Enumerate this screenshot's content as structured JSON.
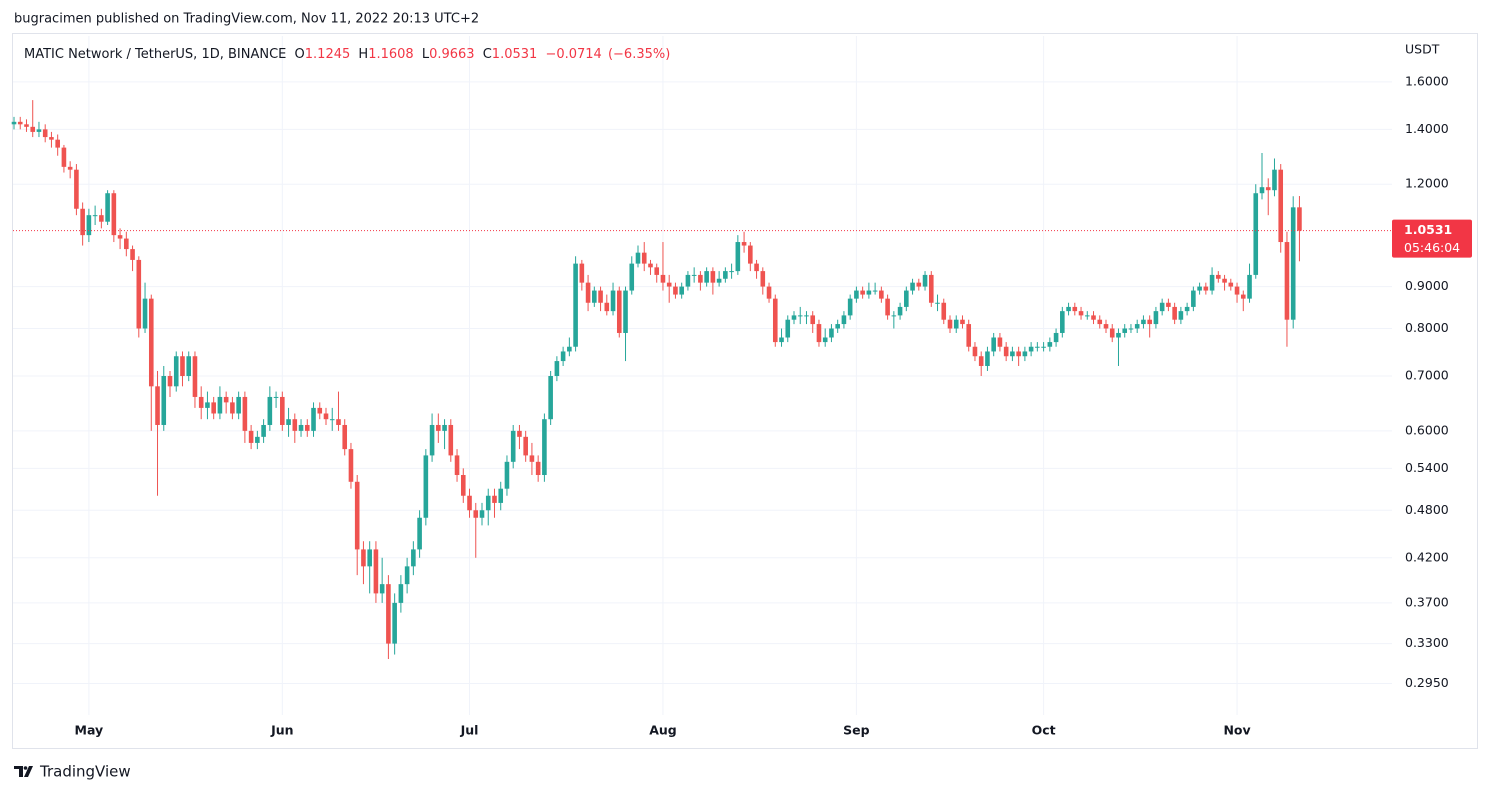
{
  "header": {
    "publisher": "bugracimen published on TradingView.com, Nov 11, 2022 20:13 UTC+2",
    "footer_logo": "TradingView"
  },
  "chart_data": {
    "type": "candlestick",
    "title": "MATIC Network / TetherUS, 1D, BINANCE",
    "ohlc_legend": {
      "open_label": "O",
      "open": 1.1245,
      "high_label": "H",
      "high": 1.1608,
      "low_label": "L",
      "low": 0.9663,
      "close_label": "C",
      "close": 1.0531,
      "change": {
        "value": -0.0714,
        "label": "−0.0714"
      },
      "change_pct": {
        "value": -6.35,
        "label": "(−6.35%)"
      }
    },
    "y_axis_label": "USDT",
    "last_price": 1.0531,
    "countdown": "05:46:04",
    "up_color": "#26a69a",
    "down_color": "#ef5350",
    "last_price_color": "#f23645",
    "log_scale": true,
    "grid": true,
    "ylim": [
      0.27,
      1.82
    ],
    "yticks": [
      {
        "value": 0.295,
        "label": "0.2950"
      },
      {
        "value": 0.33,
        "label": "0.3300"
      },
      {
        "value": 0.37,
        "label": "0.3700"
      },
      {
        "value": 0.42,
        "label": "0.4200"
      },
      {
        "value": 0.48,
        "label": "0.4800"
      },
      {
        "value": 0.54,
        "label": "0.5400"
      },
      {
        "value": 0.6,
        "label": "0.6000"
      },
      {
        "value": 0.7,
        "label": "0.7000"
      },
      {
        "value": 0.8,
        "label": "0.8000"
      },
      {
        "value": 0.9,
        "label": "0.9000"
      },
      {
        "value": 1.2,
        "label": "1.2000"
      },
      {
        "value": 1.4,
        "label": "1.4000"
      },
      {
        "value": 1.6,
        "label": "1.6000"
      }
    ],
    "categories": [
      null,
      null,
      null,
      null,
      null,
      null,
      null,
      null,
      null,
      null,
      null,
      null,
      "May",
      null,
      null,
      null,
      null,
      null,
      null,
      null,
      null,
      null,
      null,
      null,
      null,
      null,
      null,
      null,
      null,
      null,
      null,
      null,
      null,
      null,
      null,
      null,
      null,
      null,
      null,
      null,
      null,
      null,
      null,
      "Jun",
      null,
      null,
      null,
      null,
      null,
      null,
      null,
      null,
      null,
      null,
      null,
      null,
      null,
      null,
      null,
      null,
      null,
      null,
      null,
      null,
      null,
      null,
      null,
      null,
      null,
      null,
      null,
      null,
      null,
      "Jul",
      null,
      null,
      null,
      null,
      null,
      null,
      null,
      null,
      null,
      null,
      null,
      null,
      null,
      null,
      null,
      null,
      null,
      null,
      null,
      null,
      null,
      null,
      null,
      null,
      null,
      null,
      null,
      null,
      null,
      null,
      "Aug",
      null,
      null,
      null,
      null,
      null,
      null,
      null,
      null,
      null,
      null,
      null,
      null,
      null,
      null,
      null,
      null,
      null,
      null,
      null,
      null,
      null,
      null,
      null,
      null,
      null,
      null,
      null,
      null,
      null,
      null,
      "Sep",
      null,
      null,
      null,
      null,
      null,
      null,
      null,
      null,
      null,
      null,
      null,
      null,
      null,
      null,
      null,
      null,
      null,
      null,
      null,
      null,
      null,
      null,
      null,
      null,
      null,
      null,
      null,
      null,
      null,
      "Oct",
      null,
      null,
      null,
      null,
      null,
      null,
      null,
      null,
      null,
      null,
      null,
      null,
      null,
      null,
      null,
      null,
      null,
      null,
      null,
      null,
      null,
      null,
      null,
      null,
      null,
      null,
      null,
      null,
      null,
      null,
      "Nov",
      null,
      null,
      null,
      null,
      null,
      null,
      null,
      null,
      null,
      null
    ],
    "open": [
      1.42,
      1.43,
      1.42,
      1.41,
      1.39,
      1.4,
      1.37,
      1.36,
      1.33,
      1.26,
      1.25,
      1.12,
      1.04,
      1.1,
      1.1,
      1.08,
      1.17,
      1.04,
      1.03,
      1.0,
      0.97,
      0.8,
      0.87,
      0.68,
      0.61,
      0.7,
      0.68,
      0.74,
      0.7,
      0.74,
      0.66,
      0.64,
      0.65,
      0.63,
      0.66,
      0.65,
      0.63,
      0.66,
      0.6,
      0.58,
      0.59,
      0.61,
      0.66,
      0.66,
      0.61,
      0.62,
      0.6,
      0.61,
      0.6,
      0.64,
      0.63,
      0.62,
      0.62,
      0.61,
      0.57,
      0.52,
      0.43,
      0.41,
      0.43,
      0.38,
      0.39,
      0.33,
      0.37,
      0.39,
      0.41,
      0.43,
      0.47,
      0.56,
      0.61,
      0.6,
      0.61,
      0.56,
      0.53,
      0.5,
      0.48,
      0.47,
      0.48,
      0.5,
      0.49,
      0.51,
      0.55,
      0.6,
      0.59,
      0.56,
      0.55,
      0.53,
      0.62,
      0.7,
      0.73,
      0.75,
      0.76,
      0.96,
      0.91,
      0.86,
      0.89,
      0.86,
      0.84,
      0.89,
      0.79,
      0.89,
      0.96,
      0.99,
      0.96,
      0.95,
      0.93,
      0.91,
      0.9,
      0.88,
      0.9,
      0.93,
      0.93,
      0.91,
      0.94,
      0.91,
      0.92,
      0.94,
      0.94,
      1.02,
      1.01,
      0.96,
      0.94,
      0.9,
      0.87,
      0.77,
      0.78,
      0.82,
      0.83,
      0.83,
      0.83,
      0.81,
      0.77,
      0.78,
      0.8,
      0.81,
      0.83,
      0.87,
      0.89,
      0.88,
      0.89,
      0.89,
      0.87,
      0.83,
      0.83,
      0.85,
      0.89,
      0.91,
      0.9,
      0.93,
      0.86,
      0.86,
      0.82,
      0.8,
      0.82,
      0.81,
      0.76,
      0.74,
      0.72,
      0.75,
      0.78,
      0.76,
      0.74,
      0.75,
      0.74,
      0.75,
      0.76,
      0.76,
      0.76,
      0.77,
      0.79,
      0.84,
      0.85,
      0.84,
      0.83,
      0.83,
      0.82,
      0.81,
      0.8,
      0.78,
      0.79,
      0.8,
      0.8,
      0.81,
      0.82,
      0.81,
      0.84,
      0.86,
      0.85,
      0.82,
      0.84,
      0.85,
      0.89,
      0.9,
      0.89,
      0.93,
      0.92,
      0.91,
      0.9,
      0.88,
      0.87,
      0.93,
      1.17,
      1.19,
      1.18,
      1.25,
      1.02,
      0.82,
      1.1245
    ],
    "high": [
      1.45,
      1.45,
      1.44,
      1.52,
      1.43,
      1.42,
      1.39,
      1.38,
      1.34,
      1.28,
      1.27,
      1.14,
      1.12,
      1.13,
      1.12,
      1.18,
      1.18,
      1.06,
      1.05,
      1.01,
      0.98,
      0.91,
      0.88,
      0.71,
      0.72,
      0.71,
      0.75,
      0.75,
      0.75,
      0.75,
      0.68,
      0.67,
      0.66,
      0.68,
      0.67,
      0.66,
      0.67,
      0.67,
      0.61,
      0.6,
      0.62,
      0.68,
      0.67,
      0.67,
      0.64,
      0.63,
      0.62,
      0.62,
      0.65,
      0.65,
      0.64,
      0.64,
      0.67,
      0.62,
      0.58,
      0.53,
      0.44,
      0.44,
      0.44,
      0.42,
      0.4,
      0.38,
      0.4,
      0.42,
      0.44,
      0.48,
      0.57,
      0.63,
      0.63,
      0.62,
      0.62,
      0.57,
      0.54,
      0.51,
      0.49,
      0.49,
      0.51,
      0.51,
      0.52,
      0.56,
      0.61,
      0.61,
      0.6,
      0.58,
      0.56,
      0.63,
      0.71,
      0.74,
      0.76,
      0.78,
      0.98,
      0.97,
      0.93,
      0.9,
      0.9,
      0.88,
      0.91,
      0.9,
      0.9,
      0.98,
      1.01,
      1.02,
      0.97,
      0.96,
      1.02,
      0.93,
      0.91,
      0.91,
      0.94,
      0.95,
      0.94,
      0.95,
      0.95,
      0.94,
      0.95,
      0.96,
      1.04,
      1.05,
      1.02,
      0.97,
      0.95,
      0.91,
      0.88,
      0.8,
      0.83,
      0.84,
      0.85,
      0.84,
      0.84,
      0.82,
      0.8,
      0.81,
      0.82,
      0.84,
      0.88,
      0.9,
      0.9,
      0.91,
      0.91,
      0.9,
      0.88,
      0.84,
      0.86,
      0.9,
      0.92,
      0.92,
      0.94,
      0.94,
      0.88,
      0.87,
      0.83,
      0.83,
      0.83,
      0.82,
      0.77,
      0.75,
      0.76,
      0.79,
      0.79,
      0.77,
      0.76,
      0.76,
      0.76,
      0.77,
      0.77,
      0.77,
      0.78,
      0.8,
      0.85,
      0.86,
      0.86,
      0.85,
      0.84,
      0.84,
      0.83,
      0.82,
      0.81,
      0.8,
      0.81,
      0.81,
      0.82,
      0.83,
      0.83,
      0.85,
      0.87,
      0.87,
      0.86,
      0.85,
      0.86,
      0.9,
      0.91,
      0.91,
      0.95,
      0.94,
      0.93,
      0.92,
      0.91,
      0.89,
      0.96,
      1.2,
      1.31,
      1.22,
      1.29,
      1.27,
      1.05,
      1.16,
      1.1608
    ],
    "low": [
      1.4,
      1.4,
      1.39,
      1.37,
      1.37,
      1.35,
      1.33,
      1.3,
      1.24,
      1.22,
      1.1,
      1.01,
      1.02,
      1.07,
      1.06,
      1.07,
      1.02,
      1.0,
      0.98,
      0.94,
      0.78,
      0.79,
      0.6,
      0.5,
      0.6,
      0.66,
      0.67,
      0.68,
      0.69,
      0.64,
      0.62,
      0.62,
      0.62,
      0.62,
      0.63,
      0.62,
      0.62,
      0.58,
      0.57,
      0.57,
      0.58,
      0.6,
      0.64,
      0.6,
      0.59,
      0.58,
      0.59,
      0.59,
      0.59,
      0.62,
      0.61,
      0.6,
      0.6,
      0.56,
      0.51,
      0.4,
      0.39,
      0.38,
      0.37,
      0.37,
      0.316,
      0.32,
      0.36,
      0.38,
      0.4,
      0.42,
      0.46,
      0.55,
      0.58,
      0.57,
      0.55,
      0.52,
      0.49,
      0.47,
      0.42,
      0.46,
      0.46,
      0.47,
      0.48,
      0.5,
      0.54,
      0.57,
      0.55,
      0.53,
      0.52,
      0.52,
      0.61,
      0.69,
      0.72,
      0.74,
      0.75,
      0.89,
      0.84,
      0.85,
      0.84,
      0.83,
      0.83,
      0.78,
      0.73,
      0.88,
      0.95,
      0.94,
      0.93,
      0.91,
      0.89,
      0.86,
      0.87,
      0.87,
      0.89,
      0.91,
      0.89,
      0.9,
      0.88,
      0.9,
      0.91,
      0.92,
      0.93,
      0.99,
      0.94,
      0.92,
      0.88,
      0.86,
      0.76,
      0.76,
      0.77,
      0.81,
      0.81,
      0.81,
      0.79,
      0.76,
      0.76,
      0.77,
      0.79,
      0.8,
      0.82,
      0.86,
      0.87,
      0.87,
      0.88,
      0.86,
      0.82,
      0.8,
      0.82,
      0.84,
      0.88,
      0.89,
      0.89,
      0.85,
      0.84,
      0.81,
      0.79,
      0.79,
      0.8,
      0.75,
      0.73,
      0.7,
      0.71,
      0.74,
      0.75,
      0.73,
      0.73,
      0.72,
      0.73,
      0.74,
      0.75,
      0.75,
      0.75,
      0.76,
      0.78,
      0.83,
      0.83,
      0.82,
      0.82,
      0.81,
      0.8,
      0.79,
      0.77,
      0.72,
      0.78,
      0.79,
      0.79,
      0.8,
      0.78,
      0.8,
      0.83,
      0.84,
      0.81,
      0.81,
      0.83,
      0.84,
      0.88,
      0.88,
      0.88,
      0.91,
      0.89,
      0.89,
      0.86,
      0.84,
      0.86,
      0.92,
      1.15,
      1.1,
      1.16,
      0.99,
      0.76,
      0.8,
      0.9663
    ],
    "close": [
      1.43,
      1.42,
      1.41,
      1.39,
      1.4,
      1.37,
      1.36,
      1.33,
      1.26,
      1.25,
      1.12,
      1.04,
      1.1,
      1.1,
      1.08,
      1.17,
      1.04,
      1.03,
      1.0,
      0.97,
      0.8,
      0.87,
      0.68,
      0.61,
      0.7,
      0.68,
      0.74,
      0.7,
      0.74,
      0.66,
      0.64,
      0.65,
      0.63,
      0.66,
      0.65,
      0.63,
      0.66,
      0.6,
      0.58,
      0.59,
      0.61,
      0.66,
      0.66,
      0.61,
      0.62,
      0.6,
      0.61,
      0.6,
      0.64,
      0.63,
      0.62,
      0.62,
      0.61,
      0.57,
      0.52,
      0.43,
      0.41,
      0.43,
      0.38,
      0.39,
      0.33,
      0.37,
      0.39,
      0.41,
      0.43,
      0.47,
      0.56,
      0.61,
      0.6,
      0.61,
      0.56,
      0.53,
      0.5,
      0.48,
      0.47,
      0.48,
      0.5,
      0.49,
      0.51,
      0.55,
      0.6,
      0.59,
      0.56,
      0.55,
      0.53,
      0.62,
      0.7,
      0.73,
      0.75,
      0.76,
      0.96,
      0.91,
      0.86,
      0.89,
      0.86,
      0.84,
      0.89,
      0.79,
      0.89,
      0.96,
      0.99,
      0.96,
      0.95,
      0.93,
      0.91,
      0.9,
      0.88,
      0.9,
      0.93,
      0.93,
      0.91,
      0.94,
      0.91,
      0.92,
      0.94,
      0.94,
      1.02,
      1.01,
      0.96,
      0.94,
      0.9,
      0.87,
      0.77,
      0.78,
      0.82,
      0.83,
      0.83,
      0.83,
      0.81,
      0.77,
      0.78,
      0.8,
      0.81,
      0.83,
      0.87,
      0.89,
      0.88,
      0.89,
      0.89,
      0.87,
      0.83,
      0.83,
      0.85,
      0.89,
      0.91,
      0.9,
      0.93,
      0.86,
      0.86,
      0.82,
      0.8,
      0.82,
      0.81,
      0.76,
      0.74,
      0.72,
      0.75,
      0.78,
      0.76,
      0.74,
      0.75,
      0.74,
      0.75,
      0.76,
      0.76,
      0.76,
      0.77,
      0.79,
      0.84,
      0.85,
      0.84,
      0.83,
      0.83,
      0.82,
      0.81,
      0.8,
      0.78,
      0.79,
      0.8,
      0.8,
      0.81,
      0.82,
      0.81,
      0.84,
      0.86,
      0.85,
      0.82,
      0.84,
      0.85,
      0.89,
      0.9,
      0.89,
      0.93,
      0.92,
      0.91,
      0.9,
      0.88,
      0.87,
      0.93,
      1.17,
      1.19,
      1.18,
      1.25,
      1.02,
      0.82,
      1.1245,
      1.0531
    ]
  }
}
